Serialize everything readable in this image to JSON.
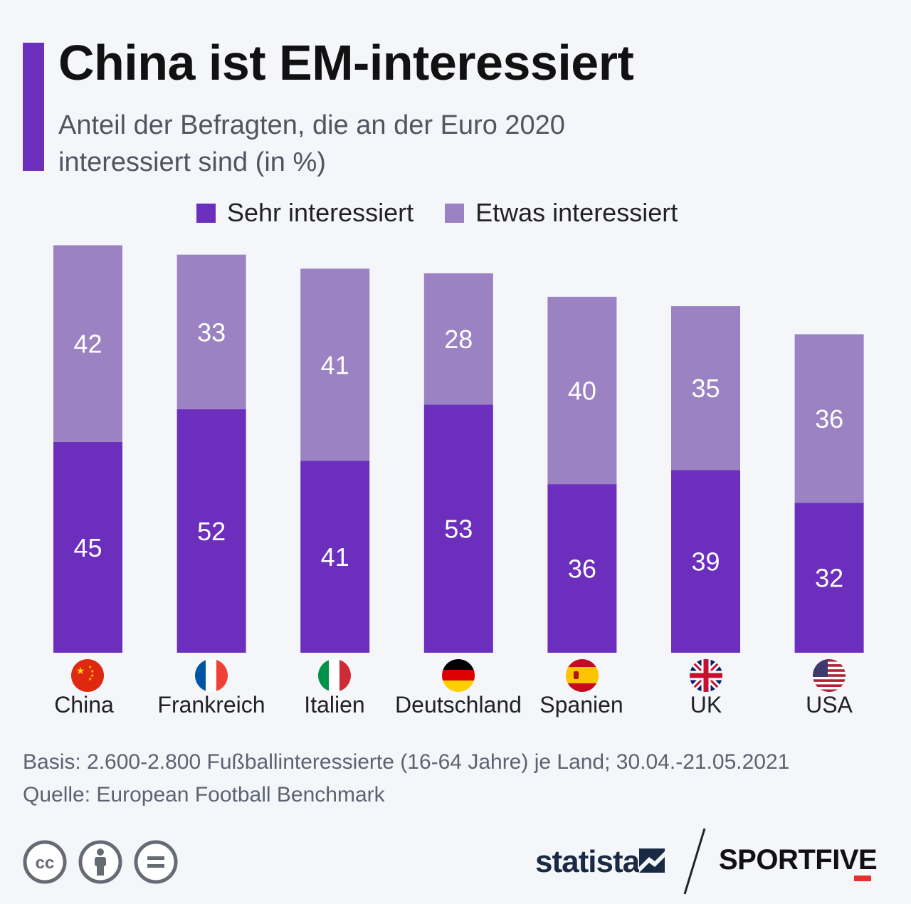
{
  "header": {
    "title": "China ist EM-interessiert",
    "subtitle": "Anteil der Befragten, die an der Euro 2020 interessiert sind (in %)"
  },
  "colors": {
    "accent": "#6c2fbd",
    "sehr": "#6c2fbd",
    "etwas": "#9b82c3",
    "background": "#f4f6fa"
  },
  "chart_data": {
    "type": "bar",
    "stacked": true,
    "categories": [
      "China",
      "Frankreich",
      "Italien",
      "Deutschland",
      "Spanien",
      "UK",
      "USA"
    ],
    "series": [
      {
        "name": "Sehr interessiert",
        "values": [
          45,
          52,
          41,
          53,
          36,
          39,
          32
        ]
      },
      {
        "name": "Etwas interessiert",
        "values": [
          42,
          33,
          41,
          28,
          40,
          35,
          36
        ]
      }
    ],
    "title": "China ist EM-interessiert",
    "subtitle": "Anteil der Befragten, die an der Euro 2020 interessiert sind (in %)",
    "xlabel": "",
    "ylabel": "",
    "legend_position": "top-center",
    "grid": false,
    "ylim": [
      0,
      87
    ]
  },
  "flags": [
    "china-flag-icon",
    "france-flag-icon",
    "italy-flag-icon",
    "germany-flag-icon",
    "spain-flag-icon",
    "uk-flag-icon",
    "usa-flag-icon"
  ],
  "footer": {
    "basis": "Basis: 2.600-2.800 Fußballinteressierte (16-64 Jahre) je Land; 30.04.-21.05.2021",
    "source": "Quelle: European Football Benchmark",
    "license_icons": [
      "cc-icon",
      "by-icon",
      "nd-icon"
    ],
    "brand_left": "statista",
    "brand_right": "SPORTFIVE"
  }
}
